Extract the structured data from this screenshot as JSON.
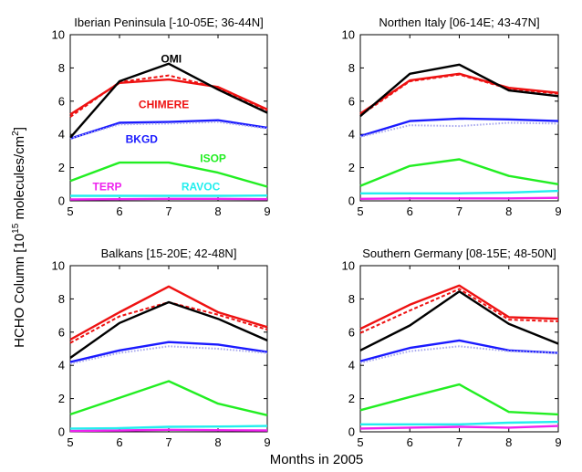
{
  "figure": {
    "xlabel": "Months in 2005",
    "ylabel_main": "HCHO Column [10",
    "ylabel_exp1": "15",
    "ylabel_mid": " molecules/cm",
    "ylabel_exp2": "2",
    "ylabel_end": "]"
  },
  "colors": {
    "OMI": "#000000",
    "CHIMERE": "#ee1111",
    "BKGD": "#1a1aff",
    "ISOP": "#22ee22",
    "TERP": "#ee22ee",
    "RAVOC": "#22eeee",
    "light": "#aaaaee"
  },
  "chart_data": [
    {
      "type": "line",
      "title": "Iberian Peninsula [-10-05E; 36-44N]",
      "x": [
        5,
        6,
        7,
        8,
        9
      ],
      "xlim": [
        5,
        9
      ],
      "ylim": [
        0,
        10
      ],
      "xticks": [
        5,
        6,
        7,
        8,
        9
      ],
      "yticks": [
        0,
        2,
        4,
        6,
        8,
        10
      ],
      "grid": false,
      "series": [
        {
          "name": "OMI",
          "color": "OMI",
          "style": "solid",
          "values": [
            3.8,
            7.2,
            8.25,
            6.7,
            5.3
          ]
        },
        {
          "name": "CHIMERE",
          "color": "CHIMERE",
          "style": "solid",
          "values": [
            5.2,
            7.1,
            7.3,
            6.85,
            5.5
          ]
        },
        {
          "color": "CHIMERE",
          "style": "dashed",
          "values": [
            5.05,
            7.15,
            7.55,
            6.8,
            5.45
          ]
        },
        {
          "color": "light",
          "style": "dotted",
          "values": [
            3.75,
            4.6,
            4.65,
            4.75,
            4.35
          ]
        },
        {
          "name": "BKGD",
          "color": "BKGD",
          "style": "solid",
          "values": [
            3.75,
            4.7,
            4.75,
            4.85,
            4.4
          ]
        },
        {
          "name": "ISOP",
          "color": "ISOP",
          "style": "solid",
          "values": [
            1.2,
            2.3,
            2.3,
            1.7,
            0.85
          ]
        },
        {
          "name": "RAVOC",
          "color": "RAVOC",
          "style": "solid",
          "values": [
            0.3,
            0.3,
            0.3,
            0.3,
            0.32
          ]
        },
        {
          "name": "TERP",
          "color": "TERP",
          "style": "solid",
          "values": [
            0.08,
            0.1,
            0.12,
            0.12,
            0.1
          ]
        }
      ],
      "annotations": [
        {
          "text": "OMI",
          "x": 7.05,
          "y": 8.55,
          "color": "OMI"
        },
        {
          "text": "CHIMERE",
          "x": 6.9,
          "y": 5.8,
          "color": "CHIMERE"
        },
        {
          "text": "BKGD",
          "x": 6.45,
          "y": 3.7,
          "color": "BKGD"
        },
        {
          "text": "ISOP",
          "x": 7.9,
          "y": 2.55,
          "color": "ISOP"
        },
        {
          "text": "TERP",
          "x": 5.75,
          "y": 0.85,
          "color": "TERP"
        },
        {
          "text": "RAVOC",
          "x": 7.65,
          "y": 0.85,
          "color": "RAVOC"
        }
      ]
    },
    {
      "type": "line",
      "title": "Northen Italy [06-14E; 43-47N]",
      "x": [
        5,
        6,
        7,
        8,
        9
      ],
      "xlim": [
        5,
        9
      ],
      "ylim": [
        0,
        10
      ],
      "xticks": [
        5,
        6,
        7,
        8,
        9
      ],
      "yticks": [
        0,
        2,
        4,
        6,
        8,
        10
      ],
      "grid": false,
      "series": [
        {
          "name": "OMI",
          "color": "OMI",
          "style": "solid",
          "values": [
            5.1,
            7.65,
            8.2,
            6.65,
            6.3
          ]
        },
        {
          "name": "CHIMERE",
          "color": "CHIMERE",
          "style": "solid",
          "values": [
            5.25,
            7.25,
            7.65,
            6.8,
            6.5
          ]
        },
        {
          "color": "CHIMERE",
          "style": "dashed",
          "values": [
            5.15,
            7.2,
            7.6,
            6.75,
            6.45
          ]
        },
        {
          "color": "light",
          "style": "dotted",
          "values": [
            3.85,
            4.55,
            4.5,
            4.7,
            4.65
          ]
        },
        {
          "name": "BKGD",
          "color": "BKGD",
          "style": "solid",
          "values": [
            3.9,
            4.8,
            4.95,
            4.9,
            4.8
          ]
        },
        {
          "name": "ISOP",
          "color": "ISOP",
          "style": "solid",
          "values": [
            0.9,
            2.1,
            2.5,
            1.5,
            1.0
          ]
        },
        {
          "name": "RAVOC",
          "color": "RAVOC",
          "style": "solid",
          "values": [
            0.45,
            0.45,
            0.45,
            0.5,
            0.6
          ]
        },
        {
          "name": "TERP",
          "color": "TERP",
          "style": "solid",
          "values": [
            0.12,
            0.15,
            0.15,
            0.15,
            0.18
          ]
        }
      ],
      "annotations": []
    },
    {
      "type": "line",
      "title": "Balkans [15-20E; 42-48N]",
      "x": [
        5,
        6,
        7,
        8,
        9
      ],
      "xlim": [
        5,
        9
      ],
      "ylim": [
        0,
        10
      ],
      "xticks": [
        5,
        6,
        7,
        8,
        9
      ],
      "yticks": [
        0,
        2,
        4,
        6,
        8,
        10
      ],
      "grid": false,
      "series": [
        {
          "name": "OMI",
          "color": "OMI",
          "style": "solid",
          "values": [
            4.45,
            6.55,
            7.8,
            6.8,
            5.5
          ]
        },
        {
          "name": "CHIMERE",
          "color": "CHIMERE",
          "style": "solid",
          "values": [
            5.55,
            7.2,
            8.75,
            7.2,
            6.3
          ]
        },
        {
          "color": "CHIMERE",
          "style": "dashed",
          "values": [
            5.35,
            6.95,
            7.8,
            7.05,
            6.15
          ]
        },
        {
          "color": "light",
          "style": "dotted",
          "values": [
            4.1,
            4.75,
            5.15,
            5.0,
            4.75
          ]
        },
        {
          "name": "BKGD",
          "color": "BKGD",
          "style": "solid",
          "values": [
            4.2,
            4.9,
            5.4,
            5.25,
            4.8
          ]
        },
        {
          "name": "ISOP",
          "color": "ISOP",
          "style": "solid",
          "values": [
            1.05,
            2.05,
            3.05,
            1.7,
            1.0
          ]
        },
        {
          "name": "RAVOC",
          "color": "RAVOC",
          "style": "solid",
          "values": [
            0.2,
            0.22,
            0.3,
            0.32,
            0.35
          ]
        },
        {
          "name": "TERP",
          "color": "TERP",
          "style": "solid",
          "values": [
            0.05,
            0.08,
            0.12,
            0.1,
            0.08
          ]
        }
      ],
      "annotations": []
    },
    {
      "type": "line",
      "title": "Southern Germany [08-15E; 48-50N]",
      "x": [
        5,
        6,
        7,
        8,
        9
      ],
      "xlim": [
        5,
        9
      ],
      "ylim": [
        0,
        10
      ],
      "xticks": [
        5,
        6,
        7,
        8,
        9
      ],
      "yticks": [
        0,
        2,
        4,
        6,
        8,
        10
      ],
      "grid": false,
      "series": [
        {
          "name": "OMI",
          "color": "OMI",
          "style": "solid",
          "values": [
            4.9,
            6.4,
            8.45,
            6.5,
            5.3
          ]
        },
        {
          "name": "CHIMERE",
          "color": "CHIMERE",
          "style": "solid",
          "values": [
            6.2,
            7.65,
            8.8,
            6.9,
            6.8
          ]
        },
        {
          "color": "CHIMERE",
          "style": "dashed",
          "values": [
            5.95,
            7.3,
            8.6,
            6.75,
            6.65
          ]
        },
        {
          "color": "light",
          "style": "dotted",
          "values": [
            4.15,
            4.85,
            5.15,
            4.85,
            4.75
          ]
        },
        {
          "name": "BKGD",
          "color": "BKGD",
          "style": "solid",
          "values": [
            4.25,
            5.05,
            5.5,
            4.9,
            4.75
          ]
        },
        {
          "name": "ISOP",
          "color": "ISOP",
          "style": "solid",
          "values": [
            1.3,
            2.1,
            2.85,
            1.2,
            1.05
          ]
        },
        {
          "name": "RAVOC",
          "color": "RAVOC",
          "style": "solid",
          "values": [
            0.45,
            0.45,
            0.45,
            0.55,
            0.6
          ]
        },
        {
          "name": "TERP",
          "color": "TERP",
          "style": "solid",
          "values": [
            0.2,
            0.25,
            0.3,
            0.25,
            0.35
          ]
        }
      ],
      "annotations": []
    }
  ]
}
